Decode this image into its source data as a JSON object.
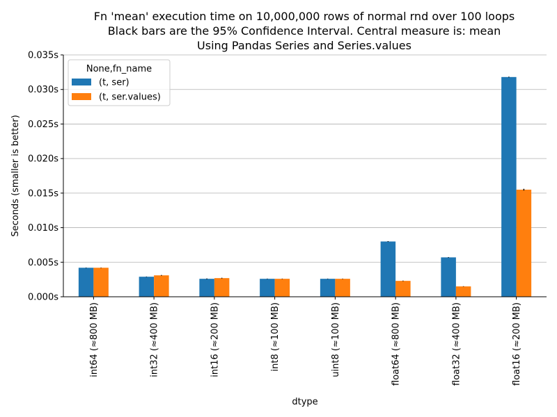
{
  "chart_data": {
    "type": "bar",
    "title_lines": [
      "Fn 'mean' execution time on 10,000,000 rows of normal rnd over 100 loops",
      "Black bars are the 95% Confidence Interval. Central measure is: mean",
      "Using Pandas Series and Series.values"
    ],
    "xlabel": "dtype",
    "ylabel": "Seconds (smaller is better)",
    "categories": [
      "int64 (≈800 MB)",
      "int32 (≈400 MB)",
      "int16 (≈200 MB)",
      "int8 (≈100 MB)",
      "uint8 (≈100 MB)",
      "float64 (≈800 MB)",
      "float32 (≈400 MB)",
      "float16 (≈200 MB)"
    ],
    "series": [
      {
        "name": "(t, ser)",
        "color": "#1f77b4",
        "values": [
          0.0042,
          0.0029,
          0.0026,
          0.0026,
          0.0026,
          0.008,
          0.0057,
          0.0318
        ],
        "ci": [
          3e-05,
          3e-05,
          5e-05,
          3e-05,
          3e-05,
          5e-05,
          4e-05,
          5e-05
        ]
      },
      {
        "name": "(t, ser.values)",
        "color": "#ff7f0e",
        "values": [
          0.0042,
          0.0031,
          0.0027,
          0.0026,
          0.0026,
          0.0023,
          0.0015,
          0.0155
        ],
        "ci": [
          3e-05,
          5e-05,
          5e-05,
          3e-05,
          3e-05,
          4e-05,
          3e-05,
          0.00012
        ]
      }
    ],
    "ylim": [
      0,
      0.035
    ],
    "yticks": [
      "0.000s",
      "0.005s",
      "0.010s",
      "0.015s",
      "0.020s",
      "0.025s",
      "0.030s",
      "0.035s"
    ],
    "ytick_values": [
      0,
      0.005,
      0.01,
      0.015,
      0.02,
      0.025,
      0.03,
      0.035
    ],
    "grid": "horizontal",
    "legend": {
      "title": "None,fn_name",
      "placement": "top-left"
    },
    "error_bar_color": "#000000"
  }
}
